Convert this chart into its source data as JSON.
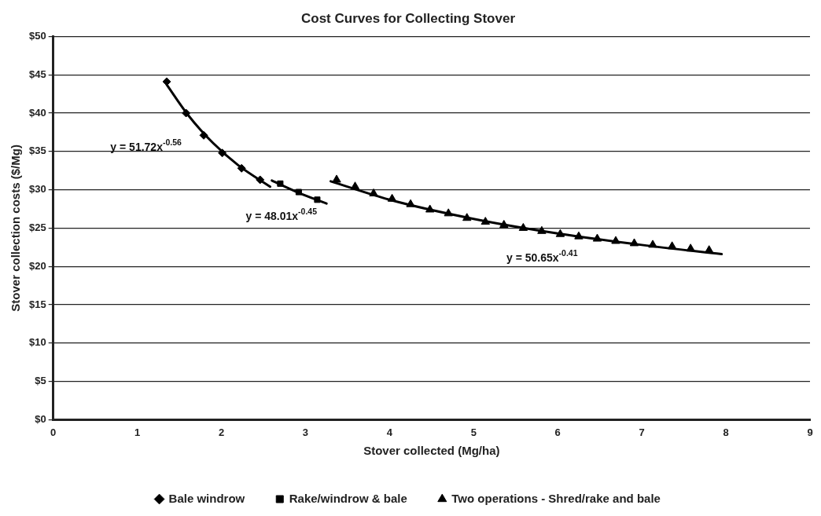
{
  "chart_data": {
    "type": "scatter",
    "title": "Cost Curves for Collecting Stover",
    "xlabel": "Stover collected (Mg/ha)",
    "ylabel": "Stover collection costs ($/Mg)",
    "xlim": [
      0,
      9
    ],
    "xticks": [
      0,
      1,
      2,
      3,
      4,
      5,
      6,
      7,
      8,
      9
    ],
    "ylim": [
      0,
      50
    ],
    "yticks": [
      {
        "value": 0,
        "label": "$0"
      },
      {
        "value": 5,
        "label": "$5"
      },
      {
        "value": 10,
        "label": "$10"
      },
      {
        "value": 15,
        "label": "$15"
      },
      {
        "value": 20,
        "label": "$20"
      },
      {
        "value": 25,
        "label": "$25"
      },
      {
        "value": 30,
        "label": "$30"
      },
      {
        "value": 35,
        "label": "$35"
      },
      {
        "value": 40,
        "label": "$40"
      },
      {
        "value": 45,
        "label": "$45"
      },
      {
        "value": 50,
        "label": "$50"
      }
    ],
    "grid": "y",
    "legend": "bottom",
    "series": [
      {
        "name": "Bale windrow",
        "color": "#000000",
        "marker": "diamond",
        "x": [
          1.35,
          1.58,
          1.79,
          2.01,
          2.24,
          2.46
        ],
        "values": [
          44.1,
          40,
          37.1,
          34.8,
          32.8,
          31.3
        ]
      },
      {
        "name": "Rake/windrow & bale",
        "color": "#000000",
        "marker": "square",
        "x": [
          2.7,
          2.92,
          3.14
        ],
        "values": [
          30.8,
          29.7,
          28.7
        ]
      },
      {
        "name": "Two operations - Shred/rake and bale",
        "color": "#000000",
        "marker": "triangle",
        "x": [
          3.37,
          3.59,
          3.81,
          4.03,
          4.25,
          4.48,
          4.7,
          4.92,
          5.14,
          5.36,
          5.59,
          5.81,
          6.03,
          6.25,
          6.47,
          6.69,
          6.91,
          7.13,
          7.36,
          7.58,
          7.8
        ],
        "values": [
          31.3,
          30.4,
          29.5,
          28.8,
          28.1,
          27.4,
          26.9,
          26.3,
          25.8,
          25.4,
          25,
          24.6,
          24.2,
          23.9,
          23.6,
          23.3,
          23,
          22.8,
          22.6,
          22.3,
          22.1
        ]
      },
      {
        "type": "line",
        "color": "#000000",
        "marker": "none",
        "x": [
          1.35,
          1.6,
          1.9,
          2.2,
          2.58
        ],
        "values": [
          43.7,
          39.8,
          36.1,
          33.2,
          30.4
        ]
      },
      {
        "type": "line",
        "color": "#000000",
        "marker": "none",
        "x": [
          2.6,
          2.9,
          3.25
        ],
        "values": [
          31.2,
          29.7,
          28.2
        ]
      },
      {
        "type": "line",
        "color": "#000000",
        "marker": "none",
        "x": [
          3.3,
          4,
          5,
          6,
          7,
          7.95
        ],
        "values": [
          31.1,
          28.7,
          26.2,
          24.3,
          22.8,
          21.6
        ]
      }
    ],
    "annotations": [
      "y = 51.72x$^{-0.56}$",
      "y = 48.01x$^{-0.45}$",
      "y = 50.65x$^{-0.41}$"
    ]
  }
}
